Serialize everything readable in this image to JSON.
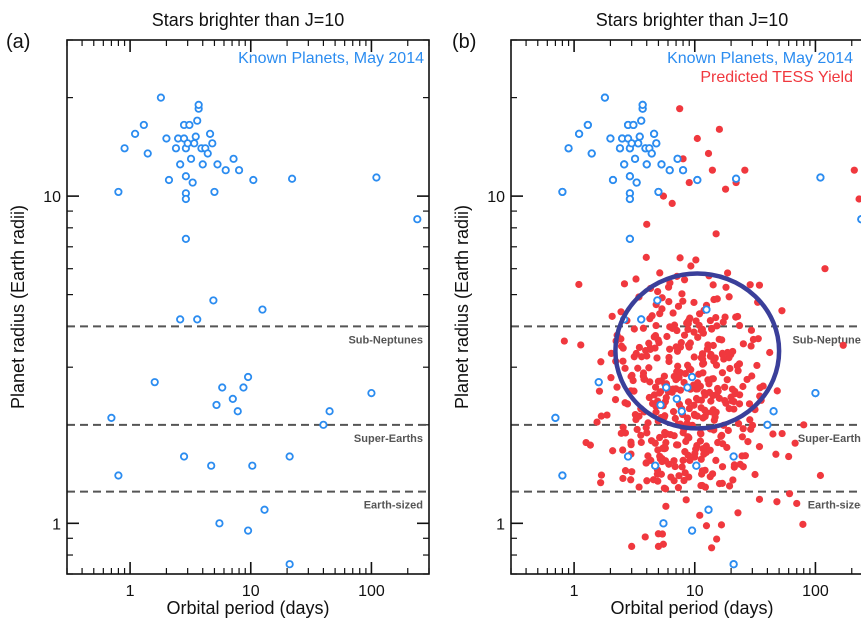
{
  "colors": {
    "known": "#2b8cf0",
    "tess": "#f0383e",
    "ellipse": "#3a3f9a",
    "dashed": "#555555",
    "axis": "#111111"
  },
  "panels": [
    {
      "label": "(a)",
      "title": "Stars brighter than J=10",
      "legend": [
        "Known Planets, May 2014"
      ]
    },
    {
      "label": "(b)",
      "title": "Stars brighter than J=10",
      "legend": [
        "Known Planets, May 2014",
        "Predicted TESS Yield"
      ]
    }
  ],
  "chart_data": [
    {
      "type": "scatter",
      "title": "Stars brighter than J=10",
      "panel_label": "(a)",
      "xlabel": "Orbital period (days)",
      "ylabel": "Planet radius (Earth radii)",
      "x_scale": "log",
      "y_scale": "log",
      "xlim": [
        0.3,
        300
      ],
      "ylim": [
        0.7,
        30
      ],
      "xticks": [
        1,
        10,
        100
      ],
      "xtick_labels": [
        "1",
        "10",
        "100"
      ],
      "yticks": [
        1,
        10
      ],
      "ytick_labels": [
        "1",
        "10"
      ],
      "reference_lines": [
        {
          "y": 4.0,
          "label": "Sub-Neptunes"
        },
        {
          "y": 2.0,
          "label": "Super-Earths"
        },
        {
          "y": 1.25,
          "label": "Earth-sized"
        }
      ],
      "legend_position": "top-right",
      "series": [
        {
          "name": "Known Planets, May 2014",
          "marker": "open-circle",
          "points": [
            [
              0.8,
              10.3
            ],
            [
              0.9,
              14.0
            ],
            [
              1.1,
              15.5
            ],
            [
              1.3,
              16.5
            ],
            [
              1.4,
              13.5
            ],
            [
              1.8,
              20.0
            ],
            [
              2.0,
              15.0
            ],
            [
              2.1,
              11.2
            ],
            [
              2.4,
              14.0
            ],
            [
              2.5,
              15.0
            ],
            [
              2.6,
              12.5
            ],
            [
              2.8,
              15.0
            ],
            [
              2.8,
              16.5
            ],
            [
              2.9,
              11.5
            ],
            [
              2.9,
              14.0
            ],
            [
              2.9,
              10.2
            ],
            [
              2.9,
              9.8
            ],
            [
              3.0,
              14.5
            ],
            [
              3.1,
              16.5
            ],
            [
              3.2,
              13.0
            ],
            [
              3.3,
              11.0
            ],
            [
              3.4,
              14.5
            ],
            [
              3.5,
              15.2
            ],
            [
              3.6,
              17.0
            ],
            [
              3.7,
              18.5
            ],
            [
              3.7,
              19.0
            ],
            [
              3.9,
              14.0
            ],
            [
              4.0,
              12.5
            ],
            [
              4.2,
              14.0
            ],
            [
              4.4,
              13.5
            ],
            [
              4.6,
              15.5
            ],
            [
              4.8,
              14.5
            ],
            [
              5.0,
              10.3
            ],
            [
              5.3,
              12.5
            ],
            [
              6.2,
              12.0
            ],
            [
              7.2,
              13.0
            ],
            [
              8.0,
              12.0
            ],
            [
              10.5,
              11.2
            ],
            [
              22.0,
              11.3
            ],
            [
              110,
              11.4
            ],
            [
              240,
              8.5
            ],
            [
              2.9,
              7.4
            ],
            [
              2.6,
              4.2
            ],
            [
              3.6,
              4.2
            ],
            [
              4.9,
              4.8
            ],
            [
              12.5,
              4.5
            ],
            [
              1.6,
              2.7
            ],
            [
              5.8,
              2.6
            ],
            [
              8.7,
              2.6
            ],
            [
              9.5,
              2.8
            ],
            [
              5.2,
              2.3
            ],
            [
              7.1,
              2.4
            ],
            [
              7.8,
              2.2
            ],
            [
              45.0,
              2.2
            ],
            [
              100,
              2.5
            ],
            [
              0.7,
              2.1
            ],
            [
              40.0,
              2.0
            ],
            [
              2.8,
              1.6
            ],
            [
              4.7,
              1.5
            ],
            [
              10.3,
              1.5
            ],
            [
              21.0,
              1.6
            ],
            [
              0.8,
              1.4
            ],
            [
              13.0,
              1.1
            ],
            [
              5.5,
              1.0
            ],
            [
              9.5,
              0.95
            ],
            [
              21.0,
              0.75
            ]
          ]
        }
      ]
    },
    {
      "type": "scatter",
      "title": "Stars brighter than J=10",
      "panel_label": "(b)",
      "xlabel": "Orbital period (days)",
      "ylabel": "Planet radius (Earth radii)",
      "x_scale": "log",
      "y_scale": "log",
      "xlim": [
        0.3,
        300
      ],
      "ylim": [
        0.7,
        30
      ],
      "xticks": [
        1,
        10,
        100
      ],
      "xtick_labels": [
        "1",
        "10",
        "100"
      ],
      "yticks": [
        1,
        10
      ],
      "ytick_labels": [
        "1",
        "10"
      ],
      "reference_lines": [
        {
          "y": 4.0,
          "label": "Sub-Neptunes"
        },
        {
          "y": 2.0,
          "label": "Super-Earths"
        },
        {
          "y": 1.25,
          "label": "Earth-sized"
        }
      ],
      "annotations": [
        {
          "type": "ellipse",
          "x_range": [
            2.2,
            50
          ],
          "y_range": [
            1.95,
            5.8
          ]
        }
      ],
      "legend_position": "top-right",
      "series": [
        {
          "name": "Known Planets, May 2014",
          "marker": "open-circle",
          "points": [
            [
              0.8,
              10.3
            ],
            [
              0.9,
              14.0
            ],
            [
              1.1,
              15.5
            ],
            [
              1.3,
              16.5
            ],
            [
              1.4,
              13.5
            ],
            [
              1.8,
              20.0
            ],
            [
              2.0,
              15.0
            ],
            [
              2.1,
              11.2
            ],
            [
              2.4,
              14.0
            ],
            [
              2.5,
              15.0
            ],
            [
              2.6,
              12.5
            ],
            [
              2.8,
              15.0
            ],
            [
              2.8,
              16.5
            ],
            [
              2.9,
              11.5
            ],
            [
              2.9,
              14.0
            ],
            [
              2.9,
              10.2
            ],
            [
              2.9,
              9.8
            ],
            [
              3.0,
              14.5
            ],
            [
              3.1,
              16.5
            ],
            [
              3.2,
              13.0
            ],
            [
              3.3,
              11.0
            ],
            [
              3.4,
              14.5
            ],
            [
              3.5,
              15.2
            ],
            [
              3.6,
              17.0
            ],
            [
              3.7,
              18.5
            ],
            [
              3.7,
              19.0
            ],
            [
              3.9,
              14.0
            ],
            [
              4.0,
              12.5
            ],
            [
              4.2,
              14.0
            ],
            [
              4.4,
              13.5
            ],
            [
              4.6,
              15.5
            ],
            [
              4.8,
              14.5
            ],
            [
              5.0,
              10.3
            ],
            [
              5.3,
              12.5
            ],
            [
              6.2,
              12.0
            ],
            [
              7.2,
              13.0
            ],
            [
              8.0,
              12.0
            ],
            [
              10.5,
              11.2
            ],
            [
              22.0,
              11.3
            ],
            [
              110,
              11.4
            ],
            [
              240,
              8.5
            ],
            [
              2.9,
              7.4
            ],
            [
              2.6,
              4.2
            ],
            [
              3.6,
              4.2
            ],
            [
              4.9,
              4.8
            ],
            [
              12.5,
              4.5
            ],
            [
              1.6,
              2.7
            ],
            [
              5.8,
              2.6
            ],
            [
              8.7,
              2.6
            ],
            [
              9.5,
              2.8
            ],
            [
              5.2,
              2.3
            ],
            [
              7.1,
              2.4
            ],
            [
              7.8,
              2.2
            ],
            [
              45.0,
              2.2
            ],
            [
              100,
              2.5
            ],
            [
              0.7,
              2.1
            ],
            [
              40.0,
              2.0
            ],
            [
              2.8,
              1.6
            ],
            [
              4.7,
              1.5
            ],
            [
              10.3,
              1.5
            ],
            [
              21.0,
              1.6
            ],
            [
              0.8,
              1.4
            ],
            [
              13.0,
              1.1
            ],
            [
              5.5,
              1.0
            ],
            [
              9.5,
              0.95
            ],
            [
              21.0,
              0.75
            ]
          ]
        },
        {
          "name": "Predicted TESS Yield",
          "marker": "filled-circle",
          "generated": true,
          "count": 440,
          "distribution": {
            "x_median": 8.5,
            "x_log_sigma": 0.33,
            "x_min": 0.75,
            "x_max": 240,
            "y_median": 2.45,
            "y_log_sigma": 0.19,
            "y_min": 0.8,
            "y_max": 20,
            "extra_points": [
              [
                7.5,
                18.5
              ],
              [
                10.5,
                15.0
              ],
              [
                13.0,
                13.5
              ],
              [
                9.0,
                11.0
              ],
              [
                6.5,
                9.5
              ],
              [
                18.0,
                10.5
              ],
              [
                22.0,
                11.0
              ],
              [
                26.0,
                12.0
              ],
              [
                14.0,
                12.0
              ],
              [
                8.0,
                13.0
              ],
              [
                4.0,
                8.2
              ],
              [
                5.5,
                10.0
              ],
              [
                16.0,
                16.0
              ],
              [
                210,
                12.0
              ],
              [
                230,
                9.8
              ],
              [
                120,
                6.0
              ],
              [
                170,
                3.5
              ],
              [
                80,
                2.0
              ],
              [
                60,
                1.6
              ],
              [
                70,
                1.15
              ],
              [
                110,
                1.4
              ],
              [
                3.0,
                0.85
              ],
              [
                5.0,
                0.85
              ]
            ]
          }
        }
      ]
    }
  ]
}
